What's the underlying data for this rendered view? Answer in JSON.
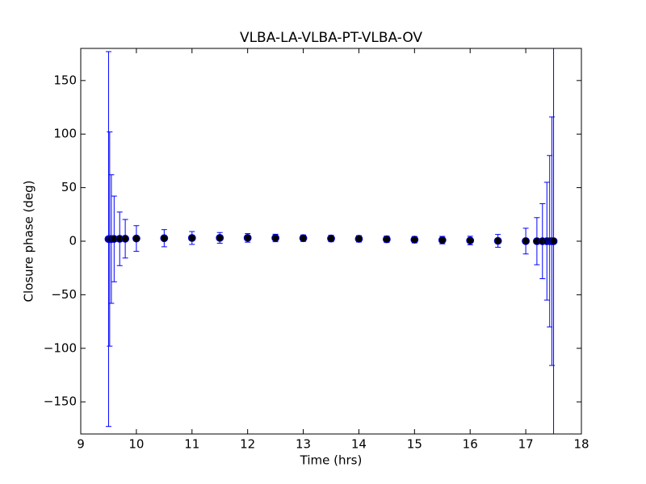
{
  "chart_data": {
    "type": "errorbar",
    "title": "VLBA-LA-VLBA-PT-VLBA-OV",
    "x_label": "Time (hrs)",
    "y_label": "Closure phase (deg)",
    "xlim": [
      9,
      18
    ],
    "xticks": [
      9,
      10,
      11,
      12,
      13,
      14,
      15,
      16,
      17,
      18
    ],
    "ylim": [
      -180,
      180
    ],
    "yticks": [
      {
        "value": -150,
        "label": "−150"
      },
      {
        "value": -100,
        "label": "−100"
      },
      {
        "value": -50,
        "label": "−50"
      },
      0,
      50,
      100,
      150
    ],
    "series": [
      {
        "color": "#0000ff",
        "marker_color": "#000000",
        "x": [
          9.5,
          9.52,
          9.55,
          9.6,
          9.7,
          9.8,
          10,
          10.5,
          11,
          11.5,
          12,
          12.5,
          13,
          13.5,
          14,
          14.5,
          15,
          15.5,
          16,
          16.5,
          17,
          17.2,
          17.3,
          17.38,
          17.43,
          17.47,
          17.5
        ],
        "values": [
          2,
          2,
          2,
          2.1,
          2.2,
          2.3,
          2.5,
          2.8,
          3,
          3.1,
          3.1,
          3,
          2.8,
          2.5,
          2.2,
          1.8,
          1.4,
          1,
          0.6,
          0.3,
          0.1,
          0,
          0,
          0,
          0,
          0,
          0
        ],
        "errors": [
          175,
          100,
          60,
          40,
          25,
          18,
          12,
          8,
          6,
          5,
          4,
          3.5,
          3,
          3,
          3,
          3,
          3,
          3.5,
          4,
          6,
          12,
          22,
          35,
          55,
          80,
          116,
          200
        ]
      }
    ]
  }
}
